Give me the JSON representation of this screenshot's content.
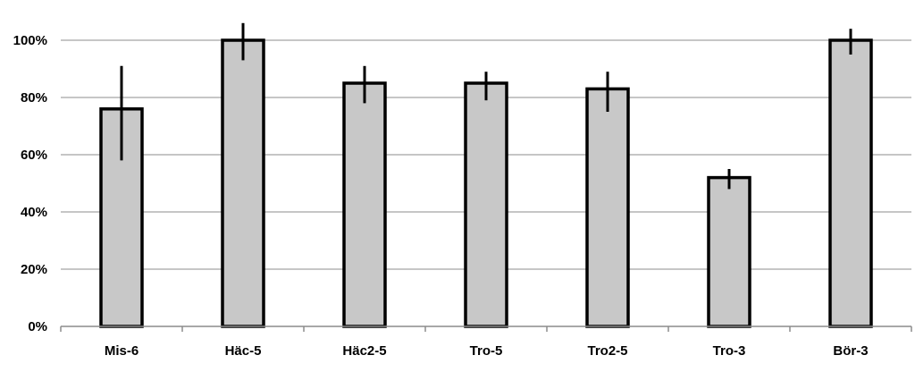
{
  "chart_data": {
    "type": "bar",
    "title": "",
    "xlabel": "",
    "ylabel": "",
    "categories": [
      "Mis-6",
      "Häc-5",
      "Häc2-5",
      "Tro-5",
      "Tro2-5",
      "Tro-3",
      "Bör-3"
    ],
    "values": [
      76,
      100,
      85,
      85,
      83,
      52,
      100
    ],
    "error_low": [
      58,
      93,
      78,
      79,
      75,
      48,
      95
    ],
    "error_high": [
      91,
      106,
      91,
      89,
      89,
      55,
      104
    ],
    "ylim": [
      0,
      100
    ],
    "y_ticks": [
      {
        "value": 0,
        "label": "0%"
      },
      {
        "value": 20,
        "label": "20%"
      },
      {
        "value": 40,
        "label": "40%"
      },
      {
        "value": 60,
        "label": "60%"
      },
      {
        "value": 80,
        "label": "80%"
      },
      {
        "value": 100,
        "label": "100%"
      }
    ],
    "grid": true,
    "legend": "none",
    "colors": {
      "bar_fill": "#c8c8c8",
      "bar_stroke": "#000000",
      "grid": "#8c8c8c",
      "error": "#000000"
    }
  }
}
